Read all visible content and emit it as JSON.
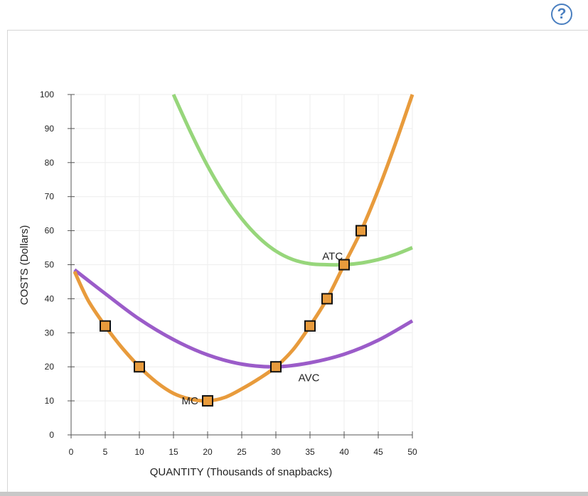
{
  "help": {
    "label": "?"
  },
  "colors": {
    "mc": "#e89b3c",
    "avc": "#9b5cc9",
    "atc": "#97d67b",
    "marker_fill": "#e89b3c",
    "marker_stroke": "#111111",
    "grid": "#eeeeee",
    "axis": "#555555"
  },
  "chart_data": {
    "type": "line",
    "xlabel": "QUANTITY (Thousands of snapbacks)",
    "ylabel": "COSTS (Dollars)",
    "xlim": [
      0,
      50
    ],
    "ylim": [
      0,
      100
    ],
    "xticks": [
      0,
      5,
      10,
      15,
      20,
      25,
      30,
      35,
      40,
      45,
      50
    ],
    "yticks": [
      0,
      10,
      20,
      30,
      40,
      50,
      60,
      70,
      80,
      90,
      100
    ],
    "grid": true,
    "series": [
      {
        "name": "MC",
        "color": "#e89b3c",
        "x": [
          0.5,
          2.5,
          5,
          7.5,
          10,
          12.5,
          15,
          17.5,
          20,
          22.5,
          25,
          27.5,
          30,
          32.5,
          35,
          37.5,
          40,
          42.5,
          45,
          47.5,
          50
        ],
        "y": [
          48,
          39.5,
          32,
          25.5,
          20,
          15.5,
          12.2,
          10.5,
          10,
          11,
          13.5,
          16.5,
          20,
          25,
          32,
          40,
          50,
          60,
          72,
          85.5,
          100
        ]
      },
      {
        "name": "AVC",
        "color": "#9b5cc9",
        "x": [
          0.5,
          5,
          10,
          15,
          20,
          25,
          30,
          35,
          40,
          45,
          50
        ],
        "y": [
          48.5,
          41.5,
          34,
          28,
          23.5,
          20.8,
          20,
          21.2,
          23.7,
          27.8,
          33.5
        ]
      },
      {
        "name": "ATC",
        "color": "#97d67b",
        "x": [
          15,
          17.5,
          20,
          22.5,
          25,
          27.5,
          30,
          32.5,
          35,
          37.5,
          40,
          42.5,
          45,
          47.5,
          50
        ],
        "y": [
          100,
          89,
          79,
          70.5,
          63.5,
          58,
          54,
          51.5,
          50.3,
          50,
          50,
          50.5,
          51.5,
          53,
          55
        ]
      }
    ],
    "markers": [
      {
        "x": 5,
        "y": 32
      },
      {
        "x": 10,
        "y": 20
      },
      {
        "x": 20,
        "y": 10
      },
      {
        "x": 30,
        "y": 20
      },
      {
        "x": 35,
        "y": 32
      },
      {
        "x": 37.5,
        "y": 40
      },
      {
        "x": 40,
        "y": 50
      },
      {
        "x": 42.5,
        "y": 60
      }
    ],
    "labels": [
      {
        "text": "MC",
        "x": 16.2,
        "y": 10
      },
      {
        "text": "AVC",
        "x": 33.3,
        "y": 16.8
      },
      {
        "text": "ATC",
        "x": 36.8,
        "y": 52.5
      }
    ]
  }
}
